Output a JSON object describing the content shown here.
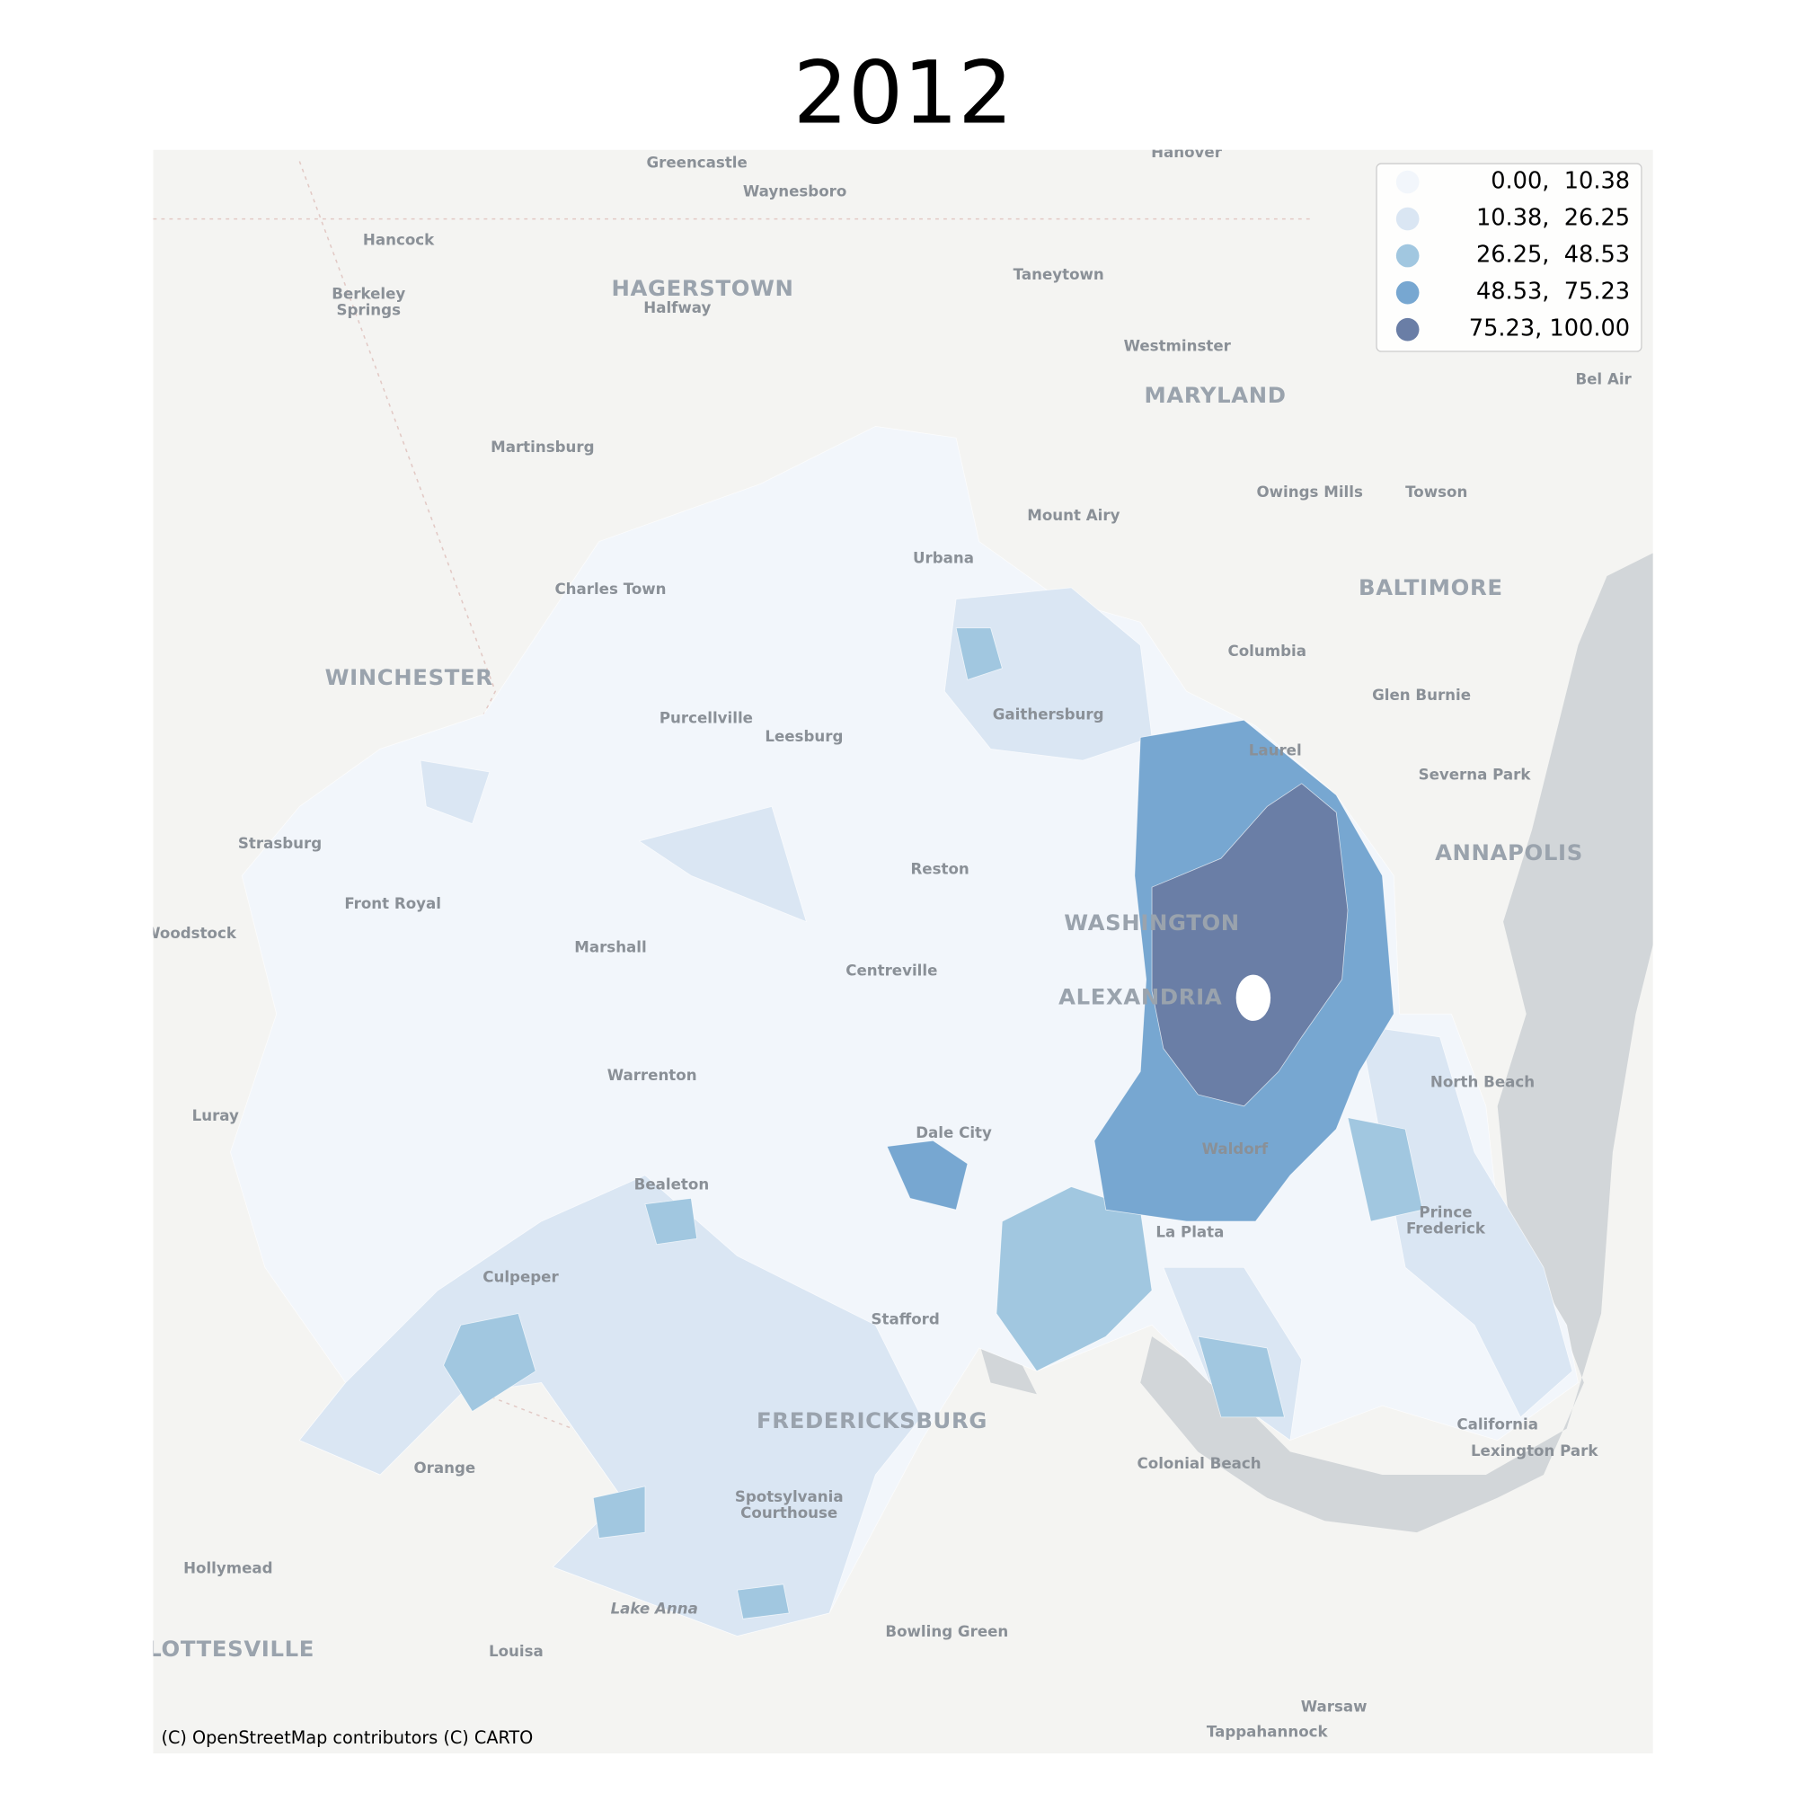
{
  "title": "2012",
  "legend": {
    "entries": [
      {
        "label": "0.00,  10.38",
        "color": "#f2f6fb"
      },
      {
        "label": "10.38,  26.25",
        "color": "#dae6f3"
      },
      {
        "label": "26.25,  48.53",
        "color": "#a1c7e0"
      },
      {
        "label": "48.53,  75.23",
        "color": "#77a7d1"
      },
      {
        "label": "75.23, 100.00",
        "color": "#6a7ea6"
      }
    ]
  },
  "attribution": "(C) OpenStreetMap contributors (C) CARTO",
  "places": [
    "Greencastle",
    "Hanover",
    "Waynesboro",
    "Hancock",
    "Berkeley",
    "Springs",
    "HAGERSTOWN",
    "Halfway",
    "Taneytown",
    "Westminster",
    "MARYLAND",
    "Bel Air",
    "Martinsburg",
    "Owings Mills",
    "Towson",
    "Mount Airy",
    "Urbana",
    "BALTIMORE",
    "Charles Town",
    "Columbia",
    "WINCHESTER",
    "Glen Burnie",
    "Purcellville",
    "Leesburg",
    "Gaithersburg",
    "Laurel",
    "Severna Park",
    "Strasburg",
    "ANNAPOLIS",
    "Reston",
    "Front Royal",
    "WASHINGTON",
    "Woodstock",
    "Marshall",
    "Centreville",
    "ALEXANDRIA",
    "Warrenton",
    "North Beach",
    "Luray",
    "Dale City",
    "Waldorf",
    "Bealeton",
    "La Plata",
    "Prince",
    "Frederick",
    "Culpeper",
    "Stafford",
    "FREDERICKSBURG",
    "California",
    "Lexington Park",
    "Colonial Beach",
    "Orange",
    "Spotsylvania",
    "Courthouse",
    "Hollymead",
    "Bowling Green",
    "Lake Anna",
    "CHARLOTTESVILLE",
    "Louisa",
    "Warsaw",
    "Tappahannock"
  ]
}
